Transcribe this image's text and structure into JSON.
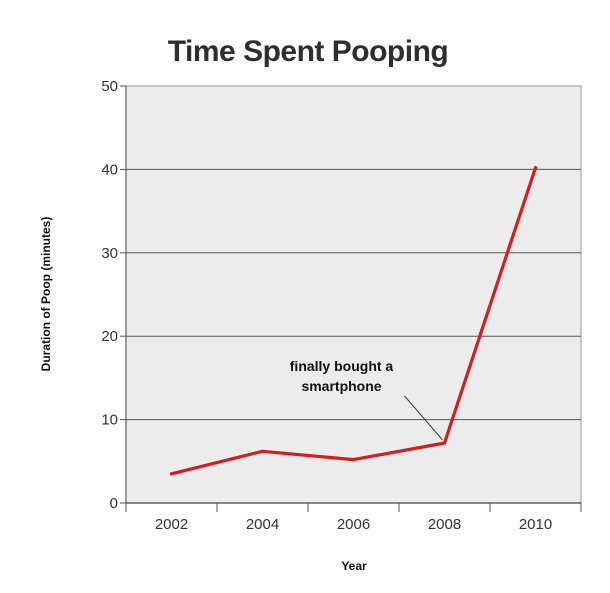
{
  "chart_data": {
    "type": "line",
    "title": "Time Spent Pooping",
    "xlabel": "Year",
    "ylabel": "Duration of Poop (minutes)",
    "x": [
      "2002",
      "2004",
      "2006",
      "2008",
      "2010"
    ],
    "xticks": [
      "2002",
      "2004",
      "2006",
      "2008",
      "2010"
    ],
    "yticks": [
      "0",
      "10",
      "20",
      "30",
      "40",
      "50"
    ],
    "ylim": [
      0,
      50
    ],
    "grid": "horizontal",
    "series": [
      {
        "values": [
          3.5,
          6.2,
          5.2,
          7.2,
          40.2
        ],
        "color": "#d61c1c"
      }
    ],
    "annotations": [
      {
        "lines": [
          "finally bought a",
          "smartphone"
        ],
        "x": "2008",
        "y": 7.2
      }
    ]
  }
}
